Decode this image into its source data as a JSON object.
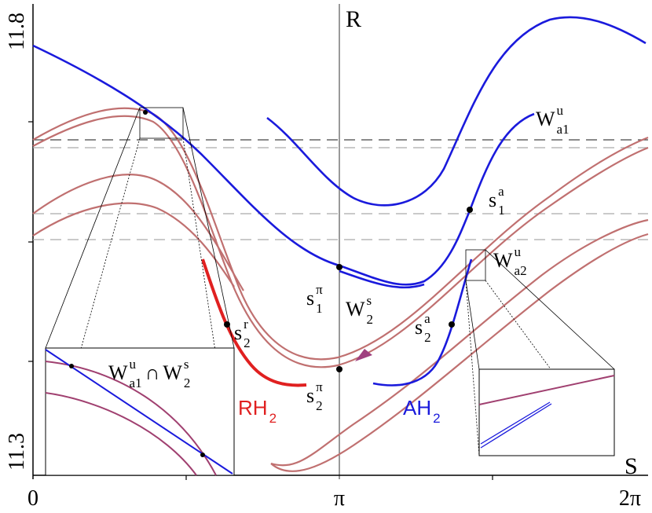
{
  "axes": {
    "x_label": "S",
    "y_label": "R",
    "x_ticks": [
      "0",
      "π",
      "2π"
    ],
    "y_ticks": [
      "11.8",
      "11.3"
    ]
  },
  "labels": {
    "wa1u": {
      "base": "W",
      "sub": "a1",
      "sup": "u"
    },
    "s1a": {
      "base": "s",
      "sub": "1",
      "sup": "a"
    },
    "wa2u": {
      "base": "W",
      "sub": "a2",
      "sup": "u"
    },
    "s1pi": {
      "base": "s",
      "sub": "1",
      "sup": "π"
    },
    "w2s": {
      "base": "W",
      "sub": "2",
      "sup": "s"
    },
    "s2a": {
      "base": "s",
      "sub": "2",
      "sup": "a"
    },
    "s2r": {
      "base": "s",
      "sub": "2",
      "sup": "r"
    },
    "s2pi": {
      "base": "s",
      "sub": "2",
      "sup": "π"
    },
    "rh2": {
      "base": "RH",
      "sub": "2"
    },
    "ah2": {
      "base": "AH",
      "sub": "2"
    },
    "intersection": {
      "left": {
        "base": "W",
        "sub": "a1",
        "sup": "u"
      },
      "op": "∩",
      "right": {
        "base": "W",
        "sub": "2",
        "sup": "s"
      }
    }
  }
}
